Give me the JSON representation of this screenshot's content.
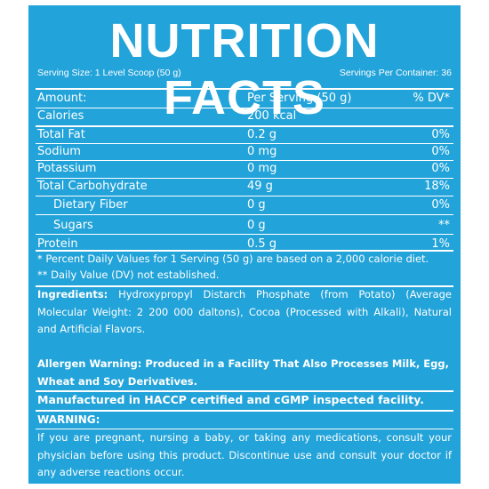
{
  "title": "NUTRITION FACTS",
  "serving_size": "Serving Size: 1 Level Scoop (50 g)",
  "servings_per_container": "Servings Per Container: 36",
  "header": {
    "amount": "Amount:",
    "per_serving": "Per Serving (50 g)",
    "dv": "% DV*"
  },
  "calories": {
    "label": "Calories",
    "value": "200 kcal"
  },
  "nutrients": [
    {
      "label": "Total Fat",
      "value": "0.2 g",
      "dv": "0%"
    },
    {
      "label": "Sodium",
      "value": "0 mg",
      "dv": "0%"
    },
    {
      "label": "Potassium",
      "value": "0 mg",
      "dv": "0%"
    },
    {
      "label": "Total Carbohydrate",
      "value": "49 g",
      "dv": "18%"
    },
    {
      "label": "Dietary Fiber",
      "value": "0 g",
      "dv": "0%"
    },
    {
      "label": "Sugars",
      "value": "0 g",
      "dv": "**"
    },
    {
      "label": "Protein",
      "value": "0.5 g",
      "dv": "1%"
    }
  ],
  "footnote_1": "* Percent Daily Values for 1 Serving (50 g) are based on a 2,000 calorie diet.",
  "footnote_2": "** Daily Value (DV) not established.",
  "ingredients_label": "Ingredients:",
  "ingredients_text": "Hydroxypropyl Distarch Phosphate (from Potato) (Average Molecular Weight: 2 200 000 daltons), Cocoa (Processed with Alkali), Natural and Artificial Flavors.",
  "allergen_warning": "Allergen Warning: Produced in a Facility That Also Processes Milk, Egg, Wheat and Soy Derivatives.",
  "manufactured": "Manufactured in HACCP certified and cGMP inspected facility.",
  "warning_label": "WARNING:",
  "warning_text": "If you are pregnant, nursing a baby, or taking any medications, consult your physician before using this product. Discontinue use and consult your doctor if any adverse reactions occur.",
  "colors": {
    "background": "#22a3d9",
    "text": "#ffffff"
  }
}
